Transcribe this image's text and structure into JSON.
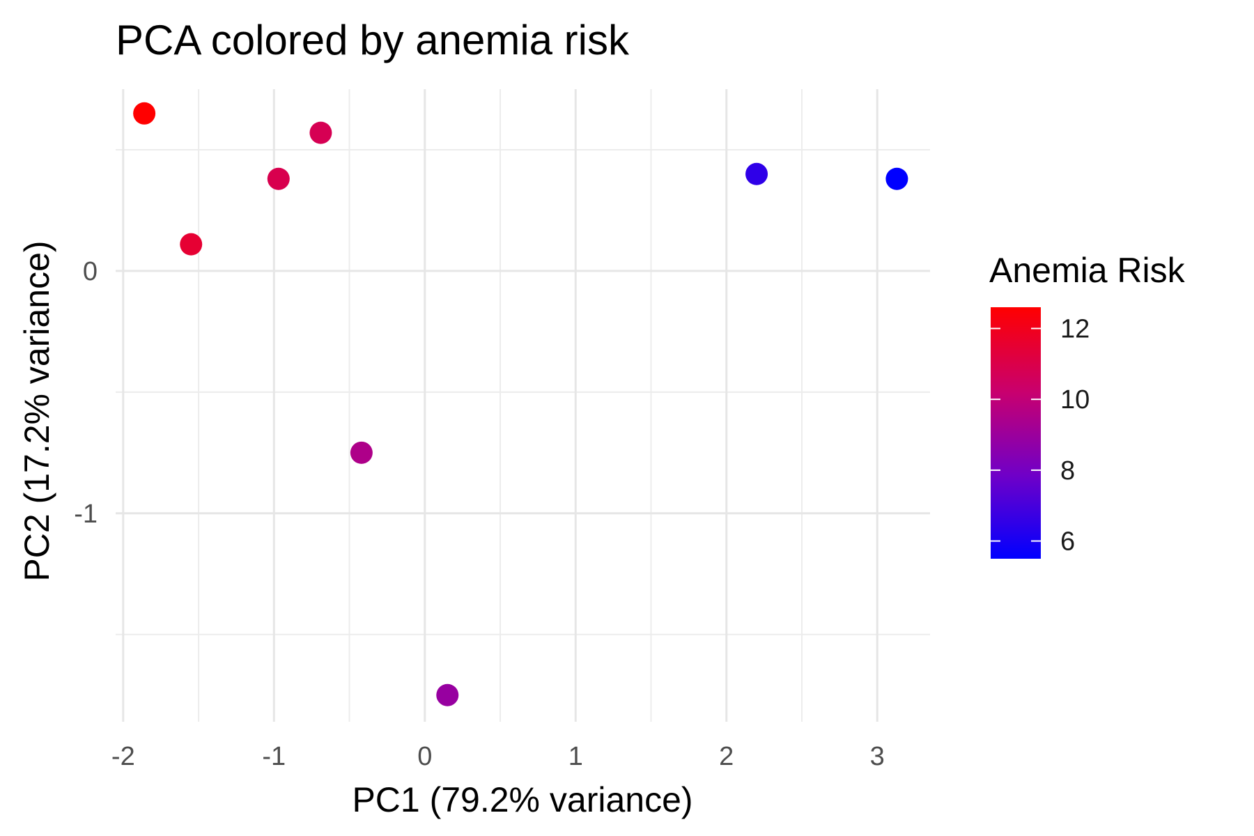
{
  "chart_data": {
    "type": "scatter",
    "title": "PCA colored by anemia risk",
    "xlabel": "PC1 (79.2% variance)",
    "ylabel": "PC2 (17.2% variance)",
    "xlim": [
      -2.05,
      3.35
    ],
    "ylim": [
      -1.86,
      0.75
    ],
    "x_ticks": [
      -2,
      -1,
      0,
      1,
      2,
      3
    ],
    "y_ticks": [
      -1,
      0
    ],
    "x_tick_labels": [
      "-2",
      "-1",
      "0",
      "1",
      "2",
      "3"
    ],
    "y_tick_labels": [
      "-1",
      "0"
    ],
    "grid": true,
    "legend": {
      "title": "Anemia Risk",
      "placement": "right",
      "type": "colorbar",
      "range": [
        5.5,
        12.6
      ],
      "ticks": [
        6,
        8,
        10,
        12
      ],
      "tick_labels": [
        "6",
        "8",
        "10",
        "12"
      ],
      "low_color": "#0000ff",
      "high_color": "#ff0000"
    },
    "points": [
      {
        "x": -1.86,
        "y": 0.65,
        "risk": 12.6
      },
      {
        "x": -0.69,
        "y": 0.57,
        "risk": 10.8
      },
      {
        "x": -0.97,
        "y": 0.38,
        "risk": 10.9
      },
      {
        "x": -1.55,
        "y": 0.11,
        "risk": 11.5
      },
      {
        "x": -0.42,
        "y": -0.75,
        "risk": 9.5
      },
      {
        "x": 0.15,
        "y": -1.75,
        "risk": 8.9
      },
      {
        "x": 2.2,
        "y": 0.4,
        "risk": 6.5
      },
      {
        "x": 3.13,
        "y": 0.38,
        "risk": 5.5
      }
    ]
  }
}
